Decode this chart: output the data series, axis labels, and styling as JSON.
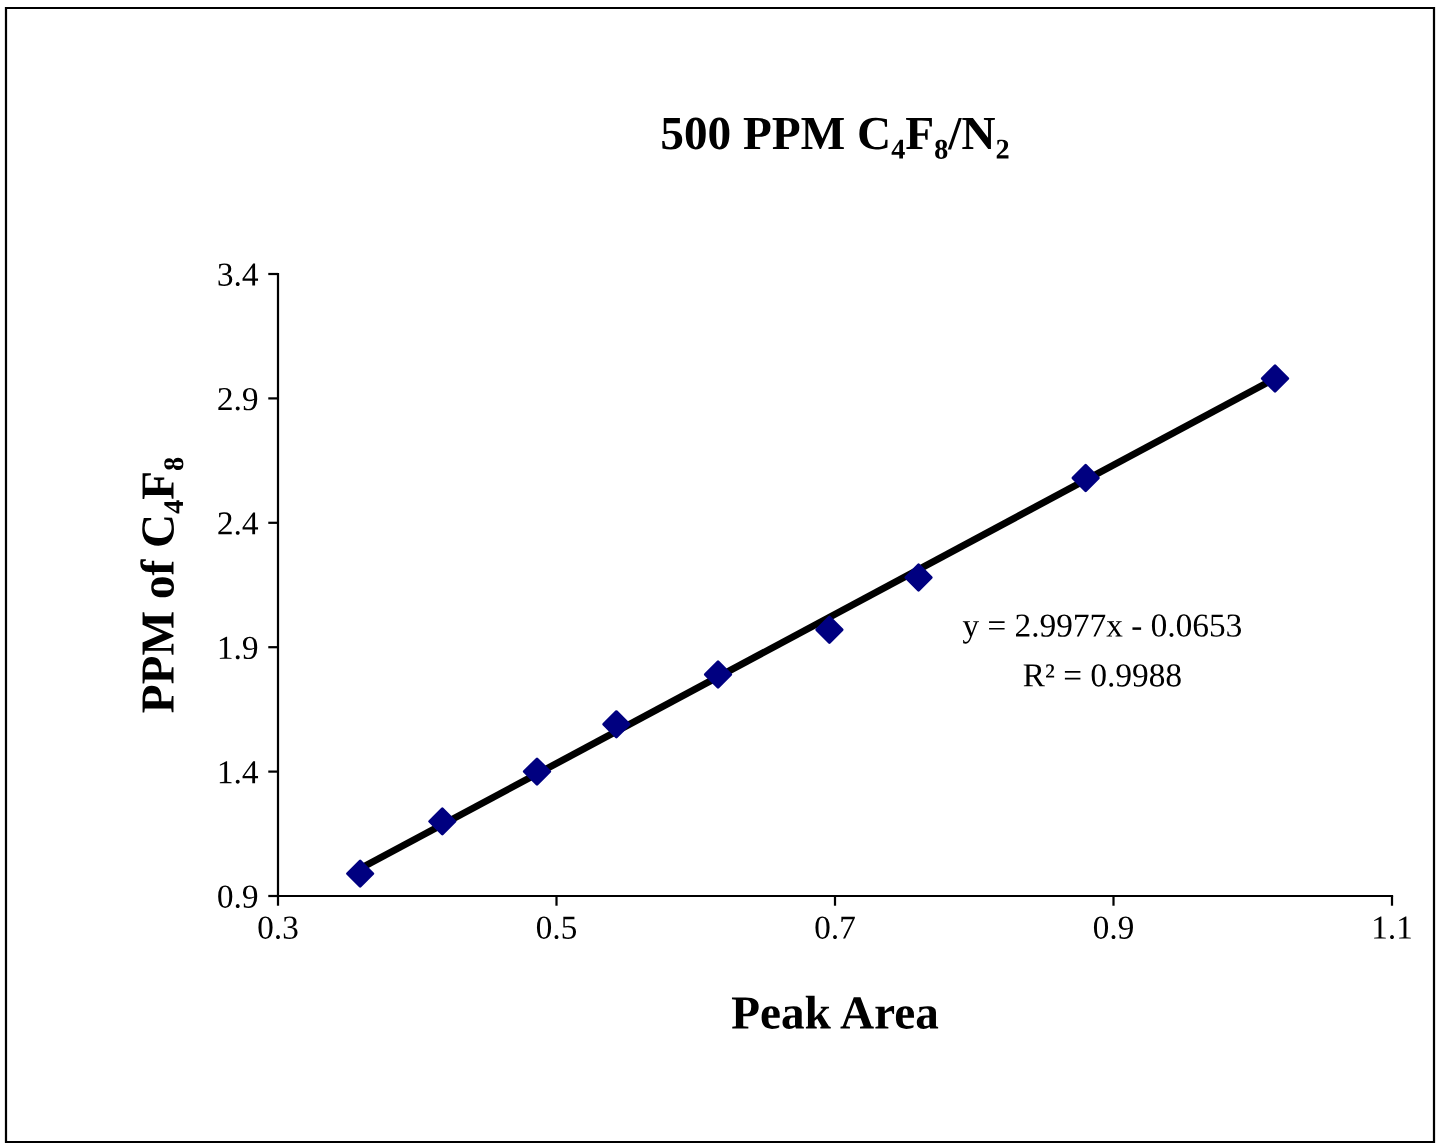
{
  "chart_data": {
    "type": "scatter",
    "title": "500 PPM C₄F₈/N₂",
    "xlabel": "Peak Area",
    "ylabel": "PPM of C₄F₈",
    "series": [
      {
        "color": "#000080",
        "marker": "diamond",
        "x": [
          0.359,
          0.418,
          0.486,
          0.543,
          0.616,
          0.696,
          0.76,
          0.88,
          1.016
        ],
        "values": [
          0.99,
          1.2,
          1.4,
          1.59,
          1.79,
          1.97,
          2.18,
          2.58,
          2.98
        ]
      },
      {
        "type": "line",
        "color": "#000000",
        "marker": "none",
        "x": [
          0.359,
          1.016
        ],
        "values": [
          1.01,
          2.98
        ]
      }
    ],
    "annotations": [
      "y = 2.9977x - 0.0653",
      "R² = 0.9988"
    ],
    "xlim": [
      0.3,
      1.1
    ],
    "xticks": [
      0.3,
      0.5,
      0.7,
      0.9,
      1.1
    ],
    "ylim": [
      0.9,
      3.4
    ],
    "yticks": [
      0.9,
      1.4,
      1.9,
      2.4,
      2.9,
      3.4
    ],
    "grid": false,
    "legend": false
  }
}
